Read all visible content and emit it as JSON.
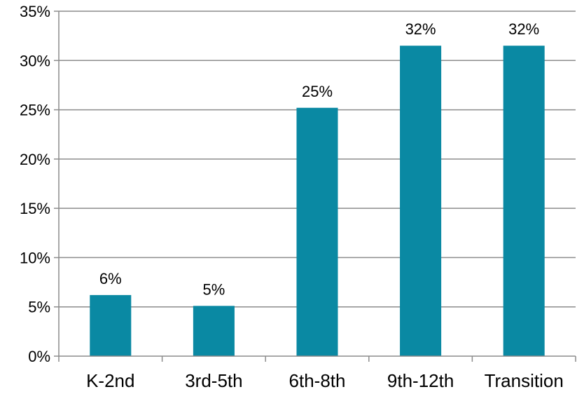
{
  "chart_data": {
    "type": "bar",
    "title": "",
    "xlabel": "",
    "ylabel": "",
    "categories": [
      "K-2nd",
      "3rd-5th",
      "6th-8th",
      "9th-12th",
      "Transition"
    ],
    "values": [
      6.2,
      5.1,
      25.2,
      31.5,
      31.5
    ],
    "data_labels": [
      "6%",
      "5%",
      "25%",
      "32%",
      "32%"
    ],
    "ylim": [
      0,
      35
    ],
    "yticks": [
      0,
      5,
      10,
      15,
      20,
      25,
      30,
      35
    ],
    "ytick_labels": [
      "0%",
      "5%",
      "10%",
      "15%",
      "20%",
      "25%",
      "30%",
      "35%"
    ],
    "grid": true,
    "legend": "none",
    "bar_color": "#0a89a3"
  }
}
